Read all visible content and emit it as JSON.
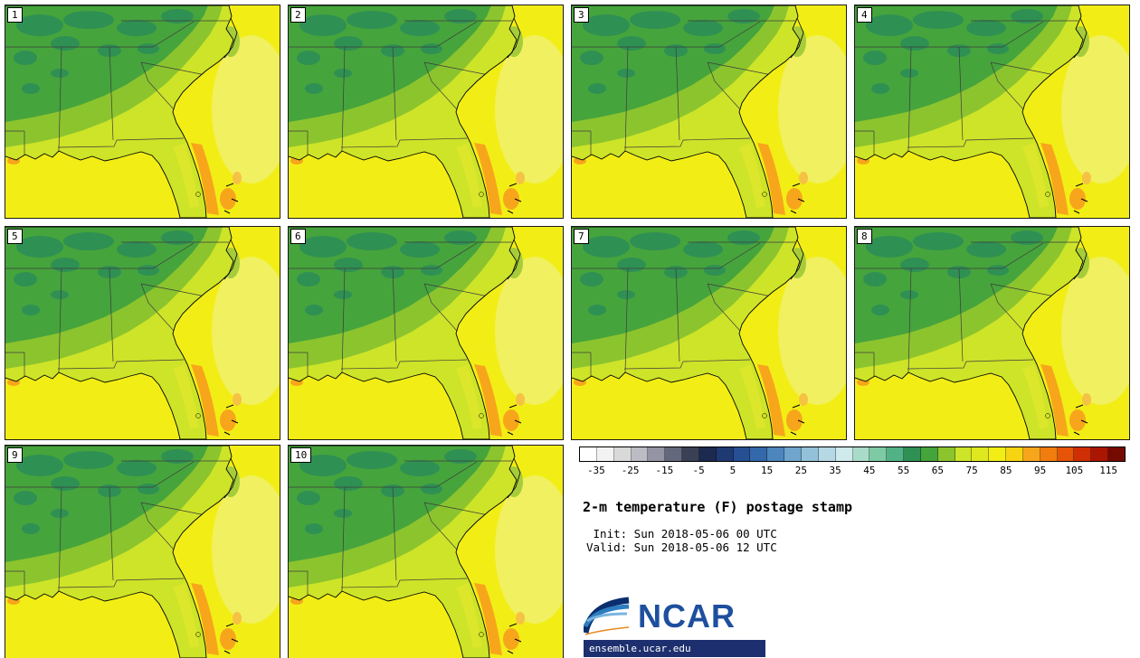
{
  "panels": [
    {
      "label": "1"
    },
    {
      "label": "2"
    },
    {
      "label": "3"
    },
    {
      "label": "4"
    },
    {
      "label": "5"
    },
    {
      "label": "6"
    },
    {
      "label": "7"
    },
    {
      "label": "8"
    },
    {
      "label": "9"
    },
    {
      "label": "10"
    }
  ],
  "colorbar": {
    "min": -40,
    "max": 120,
    "interval": 5,
    "units": "F",
    "ticks": [
      "-35",
      "-25",
      "-15",
      "-5",
      "5",
      "15",
      "25",
      "35",
      "45",
      "55",
      "65",
      "75",
      "85",
      "95",
      "105",
      "115"
    ],
    "colors": [
      "#ffffff",
      "#f2f2f2",
      "#d9d9d9",
      "#bcbcc4",
      "#9494a4",
      "#64687c",
      "#3a4154",
      "#1c2a50",
      "#1f3a72",
      "#265093",
      "#3368aa",
      "#4d85bd",
      "#70a5cd",
      "#94c1da",
      "#b6d8e5",
      "#cfeaea",
      "#a9dcc8",
      "#7ecaa5",
      "#52b285",
      "#2f9054",
      "#46a43c",
      "#8cc42e",
      "#cde428",
      "#dfe81e",
      "#f2ee15",
      "#f6d411",
      "#f7a61c",
      "#f07d0e",
      "#e55407",
      "#d02e04",
      "#ab1602",
      "#750a00"
    ]
  },
  "info": {
    "title": "2-m temperature (F) postage stamp",
    "init_line": " Init: Sun 2018-05-06 00 UTC",
    "valid_line": "Valid: Sun 2018-05-06 12 UTC"
  },
  "logo": {
    "name": "NCAR",
    "url": "ensemble.ucar.edu"
  },
  "chart_data": {
    "type": "heatmap",
    "title": "2-m temperature (F) postage stamp",
    "init": "Sun 2018-05-06 00 UTC",
    "valid": "Sun 2018-05-06 12 UTC",
    "region": "Southeastern United States",
    "ensemble_members": [
      "1",
      "2",
      "3",
      "4",
      "5",
      "6",
      "7",
      "8",
      "9",
      "10"
    ],
    "colorbar": {
      "units": "F",
      "tick_values": [
        -35,
        -25,
        -15,
        -5,
        5,
        15,
        25,
        35,
        45,
        55,
        65,
        75,
        85,
        95,
        105,
        115
      ],
      "contour_interval": 5,
      "range": [
        -40,
        120
      ],
      "colors": [
        "#ffffff",
        "#f2f2f2",
        "#d9d9d9",
        "#bcbcc4",
        "#9494a4",
        "#64687c",
        "#3a4154",
        "#1c2a50",
        "#1f3a72",
        "#265093",
        "#3368aa",
        "#4d85bd",
        "#70a5cd",
        "#94c1da",
        "#b6d8e5",
        "#cfeaea",
        "#a9dcc8",
        "#7ecaa5",
        "#52b285",
        "#2f9054",
        "#46a43c",
        "#8cc42e",
        "#cde428",
        "#dfe81e",
        "#f2ee15",
        "#f6d411",
        "#f7a61c",
        "#f07d0e",
        "#e55407",
        "#d02e04",
        "#ab1602",
        "#750a00"
      ]
    },
    "approx_field_values_f": {
      "appalachians_and_inland_north": "50-60",
      "interior_southeast": "60-70",
      "coastal_plain": "70-75",
      "gulf_and_atlantic_waters": "75-85",
      "gulf_stream_off_east_florida": "85-95"
    }
  }
}
